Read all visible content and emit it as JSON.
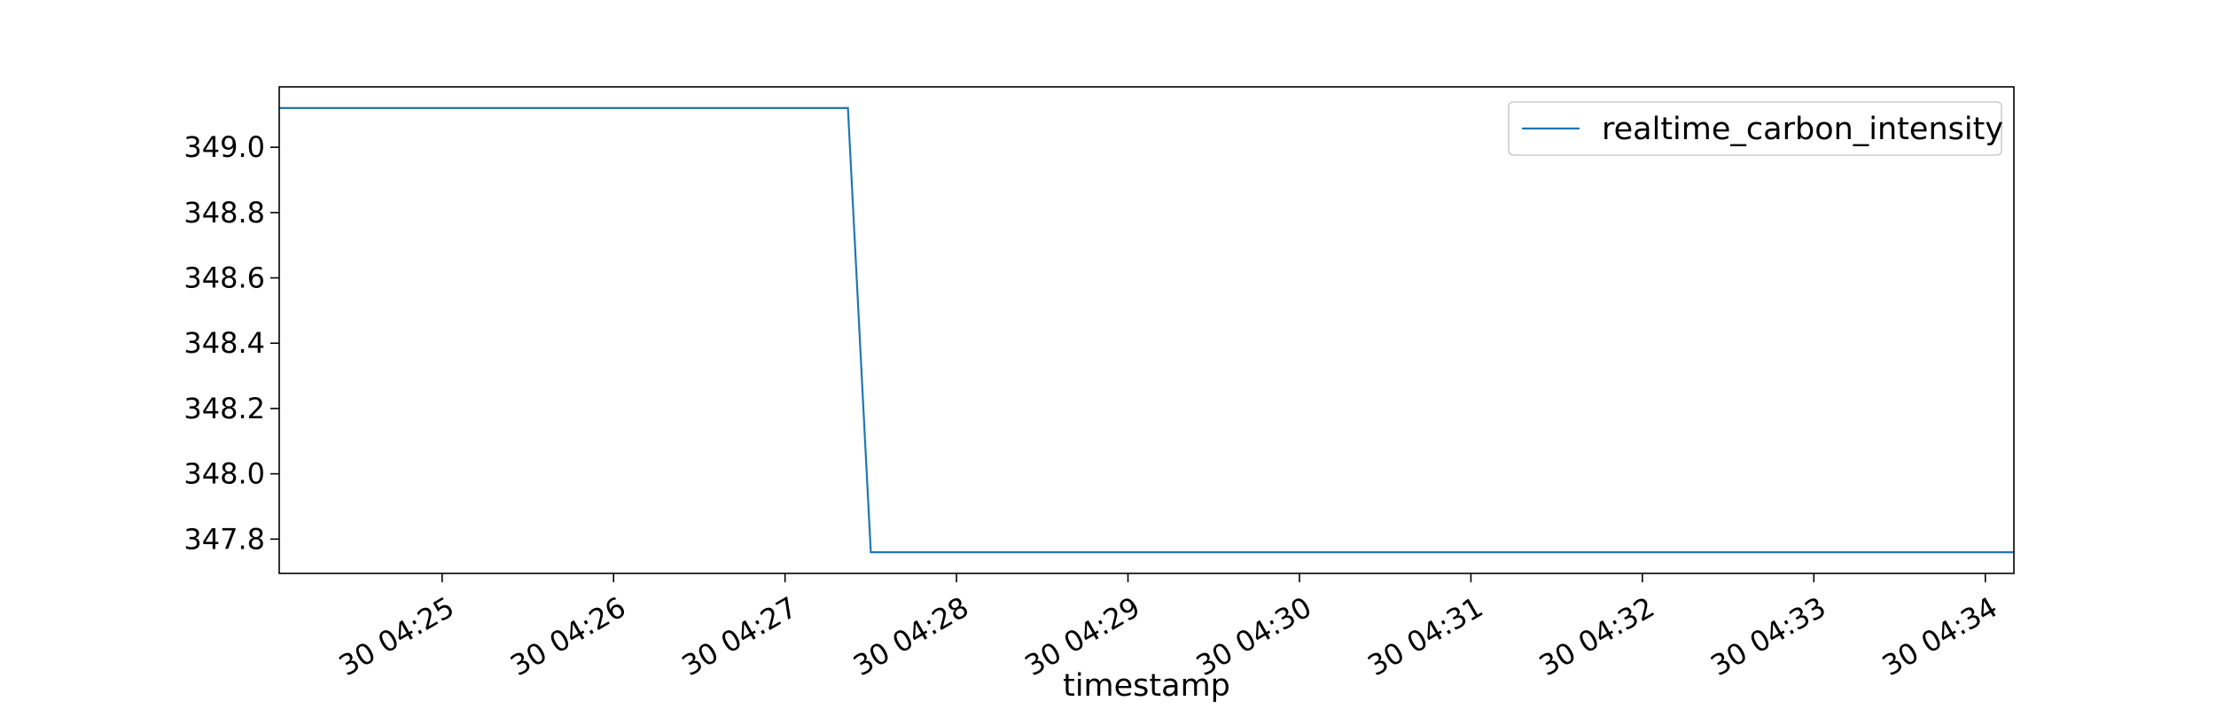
{
  "chart_data": {
    "type": "line",
    "title": "",
    "xlabel": "timestamp",
    "ylabel": "",
    "x_ticks": [
      "30 04:25",
      "30 04:26",
      "30 04:27",
      "30 04:28",
      "30 04:29",
      "30 04:30",
      "30 04:31",
      "30 04:32",
      "30 04:33",
      "30 04:34"
    ],
    "y_ticks": [
      "347.8",
      "348.0",
      "348.2",
      "348.4",
      "348.6",
      "348.8",
      "349.0"
    ],
    "xlim": [
      "04:24:03",
      "04:34:10"
    ],
    "ylim": [
      347.695,
      349.185
    ],
    "grid": false,
    "legend": "top-right",
    "series": [
      {
        "name": "realtime_carbon_intensity",
        "color": "#1f77b4",
        "x": [
          "04:24:03",
          "04:27:22",
          "04:27:30",
          "04:34:10"
        ],
        "y": [
          349.12,
          349.12,
          347.76,
          347.76
        ]
      }
    ]
  }
}
